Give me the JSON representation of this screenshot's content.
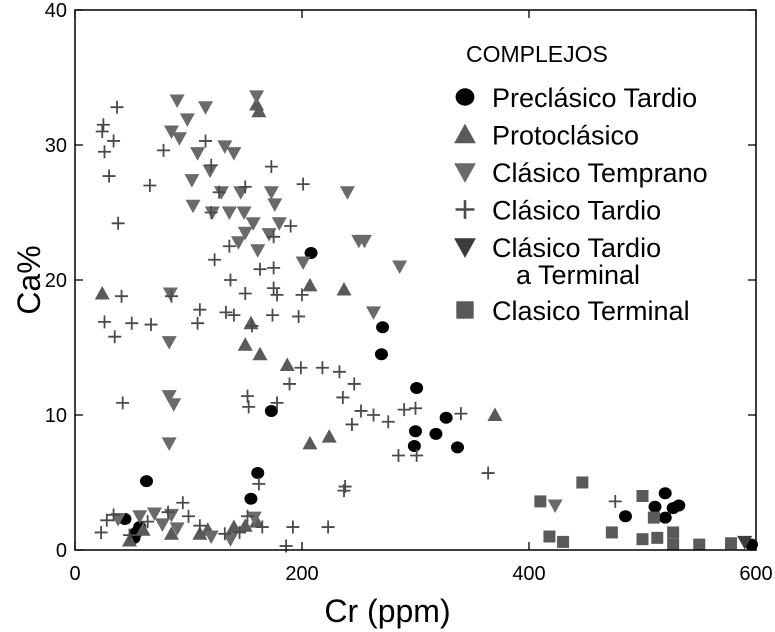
{
  "chart_data": {
    "type": "scatter",
    "xlabel": "Cr (ppm)",
    "ylabel": "Ca%",
    "xlim": [
      0,
      600
    ],
    "ylim": [
      0,
      40
    ],
    "xticks": [
      0,
      200,
      400,
      600
    ],
    "yticks": [
      0,
      10,
      20,
      30,
      40
    ],
    "grid": false,
    "legend": {
      "title": "COMPLEJOS",
      "placement": "top-right"
    },
    "series": [
      {
        "name": "Preclásico Tardio",
        "marker": "circle",
        "color": "#000000",
        "points": [
          [
            208,
            22.0
          ],
          [
            271,
            16.5
          ],
          [
            270,
            14.5
          ],
          [
            301,
            12.0
          ],
          [
            173,
            10.3
          ],
          [
            300,
            8.8
          ],
          [
            318,
            8.6
          ],
          [
            299,
            7.7
          ],
          [
            327,
            9.8
          ],
          [
            337,
            7.6
          ],
          [
            63,
            5.1
          ],
          [
            161,
            5.7
          ],
          [
            155,
            3.8
          ],
          [
            44,
            2.3
          ],
          [
            57,
            1.7
          ],
          [
            54,
            1.3
          ],
          [
            52,
            0.9
          ],
          [
            485,
            2.5
          ],
          [
            520,
            4.2
          ],
          [
            511,
            3.2
          ],
          [
            527,
            3.1
          ],
          [
            532,
            3.3
          ],
          [
            520,
            2.4
          ],
          [
            596,
            0.4
          ]
        ]
      },
      {
        "name": "Protoclásico",
        "marker": "triangle-up",
        "color": "#5a5a5a",
        "points": [
          [
            160,
            33.0
          ],
          [
            162,
            32.5
          ],
          [
            24,
            19.0
          ],
          [
            207,
            19.6
          ],
          [
            237,
            19.3
          ],
          [
            155,
            16.8
          ],
          [
            150,
            15.2
          ],
          [
            163,
            14.5
          ],
          [
            187,
            13.7
          ],
          [
            370,
            10.0
          ],
          [
            207,
            7.9
          ],
          [
            224,
            8.4
          ],
          [
            48,
            0.7
          ],
          [
            60,
            1.5
          ],
          [
            85,
            1.2
          ],
          [
            110,
            1.2
          ],
          [
            117,
            1.5
          ],
          [
            140,
            1.7
          ],
          [
            150,
            1.8
          ],
          [
            160,
            2.1
          ]
        ]
      },
      {
        "name": "Clásico Temprano",
        "marker": "triangle-down",
        "color": "#6a6a6a",
        "points": [
          [
            90,
            33.3
          ],
          [
            160,
            33.6
          ],
          [
            115,
            32.8
          ],
          [
            99,
            31.9
          ],
          [
            85,
            31.0
          ],
          [
            92,
            30.5
          ],
          [
            108,
            29.4
          ],
          [
            132,
            29.9
          ],
          [
            140,
            29.4
          ],
          [
            119,
            28.1
          ],
          [
            103,
            27.4
          ],
          [
            129,
            26.5
          ],
          [
            146,
            26.5
          ],
          [
            173,
            26.5
          ],
          [
            240,
            26.5
          ],
          [
            104,
            25.5
          ],
          [
            121,
            25.0
          ],
          [
            136,
            25.0
          ],
          [
            149,
            25.0
          ],
          [
            157,
            24.2
          ],
          [
            176,
            25.6
          ],
          [
            180,
            24.2
          ],
          [
            150,
            23.5
          ],
          [
            144,
            22.8
          ],
          [
            161,
            22.2
          ],
          [
            250,
            22.9
          ],
          [
            255,
            22.9
          ],
          [
            286,
            21.0
          ],
          [
            201,
            21.3
          ],
          [
            171,
            23.4
          ],
          [
            263,
            17.6
          ],
          [
            84,
            19.0
          ],
          [
            83,
            15.4
          ],
          [
            83,
            11.4
          ],
          [
            87,
            10.8
          ],
          [
            83,
            7.9
          ],
          [
            90,
            1.6
          ],
          [
            85,
            2.6
          ],
          [
            70,
            2.7
          ],
          [
            77,
            1.9
          ],
          [
            38,
            2.3
          ],
          [
            57,
            2.5
          ],
          [
            120,
            1.0
          ],
          [
            137,
            0.8
          ],
          [
            158,
            2.4
          ],
          [
            423,
            3.3
          ]
        ]
      },
      {
        "name": "Clásico Tardio",
        "marker": "plus",
        "color": "#4a4a4a",
        "points": [
          [
            37,
            32.8
          ],
          [
            25,
            31.5
          ],
          [
            24,
            31.0
          ],
          [
            34,
            30.3
          ],
          [
            26,
            29.5
          ],
          [
            30,
            27.7
          ],
          [
            66,
            27.0
          ],
          [
            38,
            24.2
          ],
          [
            78,
            29.6
          ],
          [
            115,
            30.3
          ],
          [
            120,
            28.5
          ],
          [
            127,
            26.5
          ],
          [
            150,
            26.9
          ],
          [
            173,
            28.4
          ],
          [
            201,
            27.1
          ],
          [
            120,
            25.0
          ],
          [
            175,
            23.2
          ],
          [
            190,
            24.0
          ],
          [
            136,
            22.5
          ],
          [
            123,
            21.5
          ],
          [
            137,
            20.0
          ],
          [
            163,
            20.8
          ],
          [
            175,
            20.9
          ],
          [
            178,
            18.9
          ],
          [
            200,
            18.9
          ],
          [
            41,
            18.8
          ],
          [
            85,
            18.8
          ],
          [
            110,
            17.8
          ],
          [
            150,
            19.0
          ],
          [
            175,
            19.4
          ],
          [
            26,
            16.9
          ],
          [
            50,
            16.8
          ],
          [
            67,
            16.7
          ],
          [
            35,
            15.8
          ],
          [
            108,
            16.8
          ],
          [
            133,
            17.6
          ],
          [
            140,
            17.4
          ],
          [
            156,
            16.6
          ],
          [
            174,
            17.4
          ],
          [
            197,
            17.3
          ],
          [
            42,
            10.9
          ],
          [
            199,
            13.5
          ],
          [
            218,
            13.5
          ],
          [
            233,
            13.2
          ],
          [
            246,
            12.3
          ],
          [
            189,
            12.3
          ],
          [
            152,
            11.4
          ],
          [
            153,
            10.6
          ],
          [
            178,
            10.9
          ],
          [
            236,
            11.3
          ],
          [
            252,
            10.3
          ],
          [
            263,
            10.0
          ],
          [
            276,
            9.5
          ],
          [
            290,
            10.4
          ],
          [
            300,
            10.5
          ],
          [
            340,
            10.1
          ],
          [
            244,
            9.3
          ],
          [
            285,
            7.0
          ],
          [
            301,
            7.0
          ],
          [
            238,
            4.7
          ],
          [
            237,
            4.4
          ],
          [
            364,
            5.7
          ],
          [
            162,
            4.9
          ],
          [
            95,
            3.5
          ],
          [
            82,
            2.8
          ],
          [
            64,
            2.1
          ],
          [
            28,
            2.2
          ],
          [
            34,
            2.6
          ],
          [
            23,
            1.3
          ],
          [
            100,
            2.5
          ],
          [
            110,
            1.8
          ],
          [
            132,
            1.2
          ],
          [
            145,
            1.3
          ],
          [
            152,
            2.5
          ],
          [
            165,
            1.7
          ],
          [
            192,
            1.7
          ],
          [
            223,
            1.7
          ],
          [
            186,
            0.3
          ],
          [
            48,
            1.1
          ],
          [
            476,
            3.6
          ]
        ]
      },
      {
        "name": "Clásico Tardio a Terminal",
        "marker": "triangle-down",
        "color": "#3c3c3c",
        "points": [
          [
            590,
            0.6
          ]
        ]
      },
      {
        "name": "Clasico Terminal",
        "marker": "square",
        "color": "#5a5a5a",
        "points": [
          [
            410,
            3.6
          ],
          [
            447,
            5.0
          ],
          [
            418,
            1.0
          ],
          [
            430,
            0.6
          ],
          [
            473,
            1.3
          ],
          [
            500,
            4.0
          ],
          [
            510,
            2.4
          ],
          [
            500,
            0.8
          ],
          [
            513,
            0.9
          ],
          [
            527,
            1.3
          ],
          [
            527,
            0.4
          ],
          [
            550,
            0.4
          ],
          [
            578,
            0.5
          ]
        ]
      }
    ]
  }
}
